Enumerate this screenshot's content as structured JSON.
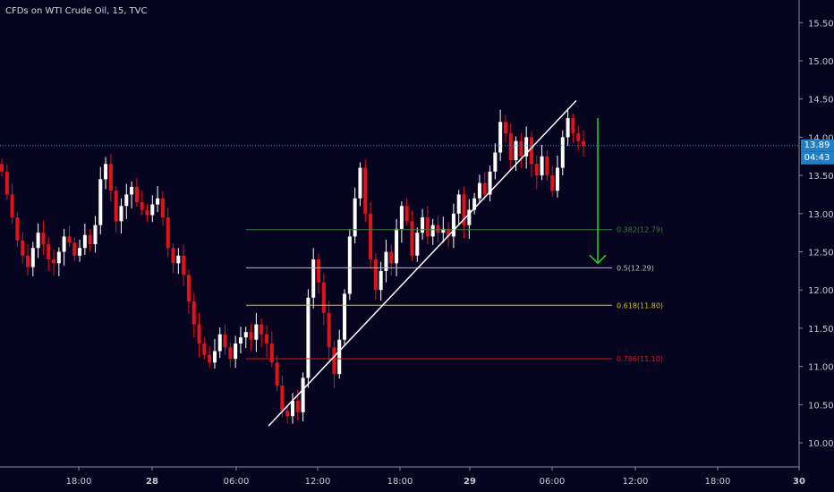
{
  "title": "CFDs on WTI Crude Oil, 15, TVC",
  "current_price_label": "13.89",
  "countdown_label": "04:43",
  "colors": {
    "background": "#07041f",
    "up": "#ffffff",
    "down": "#e0131a",
    "axis_text": "#c8c8d0",
    "price_line": "#2e8bd4",
    "fib_0382": "#3c7d3a",
    "fib_05": "#bdbdbd",
    "fib_0618": "#d8c21a",
    "fib_0786": "#d61a1a",
    "arrow": "#2ad02a"
  },
  "chart_data": {
    "type": "candlestick",
    "title": "CFDs on WTI Crude Oil, 15, TVC",
    "x_ticks": [
      "18:00",
      "28",
      "06:00",
      "12:00",
      "18:00",
      "29",
      "06:00",
      "12:00",
      "18:00",
      "30"
    ],
    "y_ticks": [
      "10.00",
      "10.50",
      "11.00",
      "11.50",
      "12.00",
      "12.50",
      "13.00",
      "13.50",
      "14.00",
      "14.50",
      "15.00",
      "15.50"
    ],
    "ylim": [
      9.8,
      15.8
    ],
    "last_price": 13.89,
    "fib_levels": [
      {
        "label": "0.382(12.79)",
        "value": 12.79,
        "color": "#3c7d3a"
      },
      {
        "label": "0.5(12.29)",
        "value": 12.29,
        "color": "#bdbdbd"
      },
      {
        "label": "0.618(11.80)",
        "value": 11.8,
        "color": "#d8c21a"
      },
      {
        "label": "0.786(11.10)",
        "value": 11.1,
        "color": "#d61a1a"
      }
    ],
    "trendline": {
      "from": 10.22,
      "to": 14.48
    },
    "projection": {
      "from": 14.25,
      "to": 12.35
    },
    "closes": [
      13.55,
      13.25,
      12.95,
      12.65,
      12.45,
      12.3,
      12.55,
      12.75,
      12.6,
      12.4,
      12.35,
      12.5,
      12.7,
      12.62,
      12.45,
      12.55,
      12.72,
      12.6,
      12.85,
      13.45,
      13.65,
      13.3,
      12.9,
      13.1,
      13.25,
      13.35,
      13.15,
      13.05,
      12.98,
      13.12,
      13.2,
      12.95,
      12.55,
      12.35,
      12.45,
      12.2,
      11.85,
      11.55,
      11.3,
      11.15,
      11.05,
      11.2,
      11.42,
      11.25,
      11.1,
      11.3,
      11.38,
      11.45,
      11.35,
      11.55,
      11.42,
      11.3,
      11.05,
      10.75,
      10.42,
      10.35,
      10.55,
      10.4,
      10.85,
      11.9,
      12.4,
      12.1,
      11.7,
      11.25,
      10.9,
      11.35,
      11.95,
      12.7,
      13.2,
      13.6,
      13.0,
      12.4,
      12.0,
      12.25,
      12.5,
      12.35,
      12.8,
      13.1,
      12.9,
      12.45,
      12.75,
      12.95,
      12.7,
      12.85,
      12.75,
      12.8,
      12.7,
      13.0,
      13.25,
      12.85,
      13.05,
      13.2,
      13.4,
      13.25,
      13.55,
      13.8,
      14.2,
      14.05,
      13.7,
      13.95,
      13.75,
      14.0,
      13.65,
      13.5,
      13.75,
      13.5,
      13.3,
      13.6,
      14.0,
      14.25,
      14.05,
      13.95,
      13.89
    ],
    "grid": false
  }
}
